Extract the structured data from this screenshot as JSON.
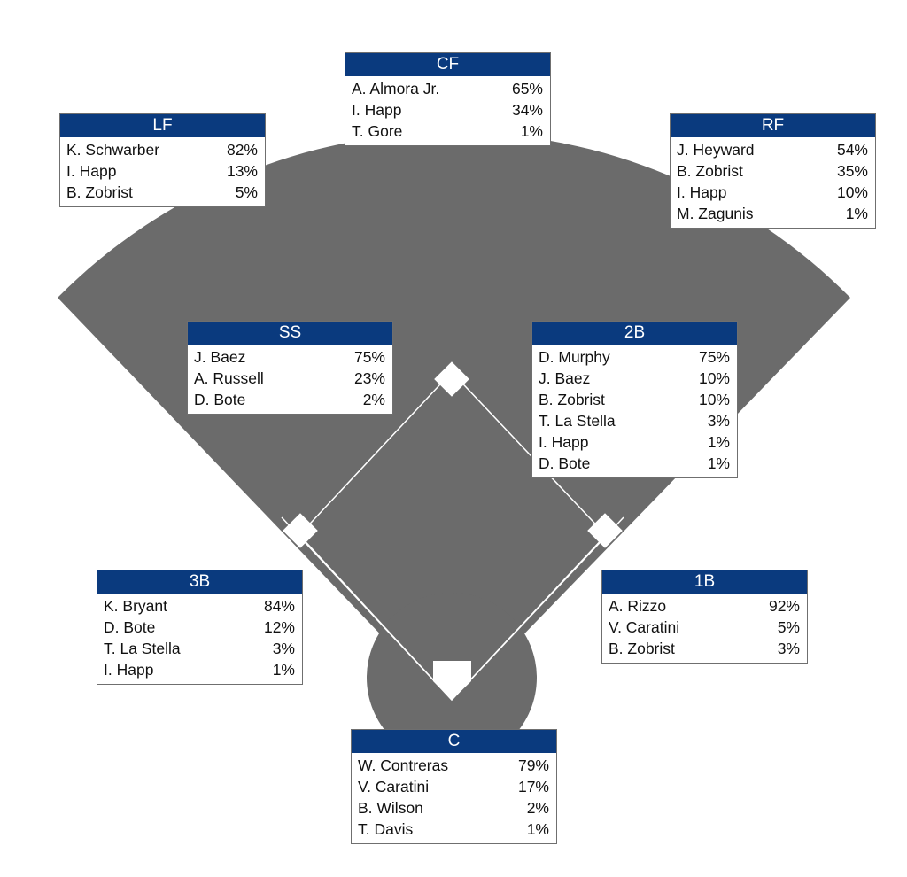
{
  "colors": {
    "field": "#6b6b6b",
    "header": "#0a3a7e",
    "base": "#ffffff",
    "line": "#ffffff"
  },
  "positions": {
    "cf": {
      "label": "CF",
      "players": [
        {
          "name": "A. Almora Jr.",
          "pct": "65%"
        },
        {
          "name": "I. Happ",
          "pct": "34%"
        },
        {
          "name": "T. Gore",
          "pct": "1%"
        }
      ]
    },
    "lf": {
      "label": "LF",
      "players": [
        {
          "name": "K. Schwarber",
          "pct": "82%"
        },
        {
          "name": "I. Happ",
          "pct": "13%"
        },
        {
          "name": "B. Zobrist",
          "pct": "5%"
        }
      ]
    },
    "rf": {
      "label": "RF",
      "players": [
        {
          "name": "J. Heyward",
          "pct": "54%"
        },
        {
          "name": "B. Zobrist",
          "pct": "35%"
        },
        {
          "name": "I. Happ",
          "pct": "10%"
        },
        {
          "name": "M. Zagunis",
          "pct": "1%"
        }
      ]
    },
    "ss": {
      "label": "SS",
      "players": [
        {
          "name": "J. Baez",
          "pct": "75%"
        },
        {
          "name": "A. Russell",
          "pct": "23%"
        },
        {
          "name": "D. Bote",
          "pct": "2%"
        }
      ]
    },
    "second_base": {
      "label": "2B",
      "players": [
        {
          "name": "D. Murphy",
          "pct": "75%"
        },
        {
          "name": "J. Baez",
          "pct": "10%"
        },
        {
          "name": "B. Zobrist",
          "pct": "10%"
        },
        {
          "name": "T. La Stella",
          "pct": "3%"
        },
        {
          "name": "I. Happ",
          "pct": "1%"
        },
        {
          "name": "D. Bote",
          "pct": "1%"
        }
      ]
    },
    "third_base": {
      "label": "3B",
      "players": [
        {
          "name": "K. Bryant",
          "pct": "84%"
        },
        {
          "name": "D. Bote",
          "pct": "12%"
        },
        {
          "name": "T. La Stella",
          "pct": "3%"
        },
        {
          "name": "I. Happ",
          "pct": "1%"
        }
      ]
    },
    "first_base": {
      "label": "1B",
      "players": [
        {
          "name": "A. Rizzo",
          "pct": "92%"
        },
        {
          "name": "V. Caratini",
          "pct": "5%"
        },
        {
          "name": "B. Zobrist",
          "pct": "3%"
        }
      ]
    },
    "catcher": {
      "label": "C",
      "players": [
        {
          "name": "W. Contreras",
          "pct": "79%"
        },
        {
          "name": "V. Caratini",
          "pct": "17%"
        },
        {
          "name": "B. Wilson",
          "pct": "2%"
        },
        {
          "name": "T. Davis",
          "pct": "1%"
        }
      ]
    }
  }
}
